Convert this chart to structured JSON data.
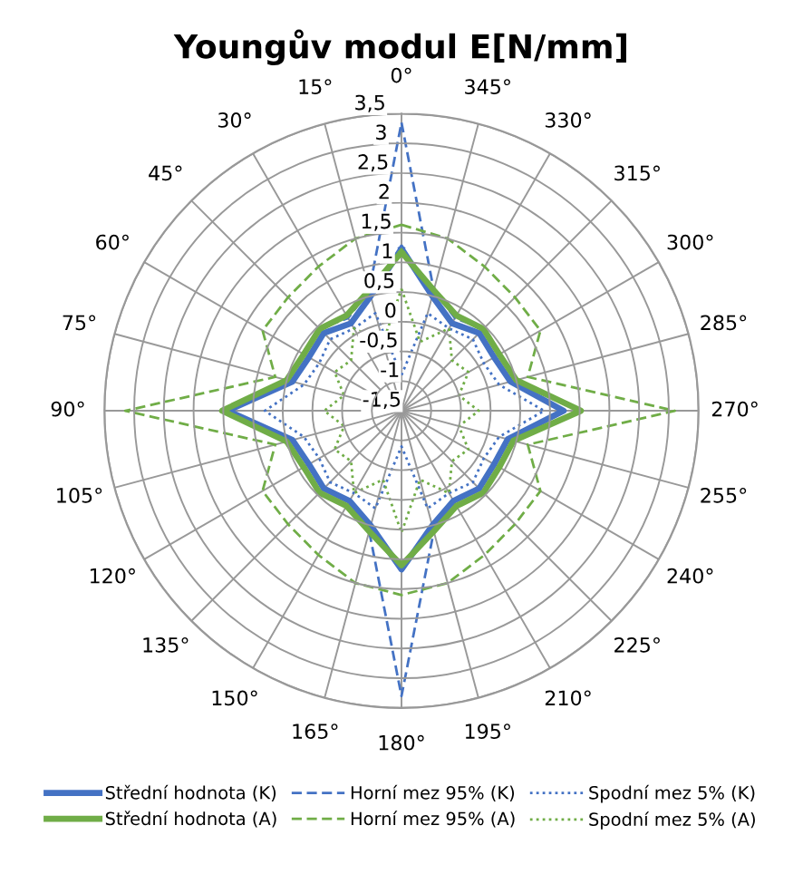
{
  "chart_data": {
    "type": "radar",
    "title": "Youngův modul E[N/mm]",
    "categories": [
      "0°",
      "345°",
      "330°",
      "315°",
      "300°",
      "285°",
      "270°",
      "255°",
      "240°",
      "225°",
      "210°",
      "195°",
      "180°",
      "165°",
      "150°",
      "135°",
      "120°",
      "105°",
      "90°",
      "75°",
      "60°",
      "45°",
      "30°",
      "15°"
    ],
    "ylim": [
      -1.5,
      3.5
    ],
    "yticks": [
      {
        "value": -1.5,
        "label": "-1,5"
      },
      -1,
      {
        "value": -0.5,
        "label": "-0,5"
      },
      0,
      {
        "value": 0.5,
        "label": "0,5"
      },
      1,
      {
        "value": 1.5,
        "label": "1,5"
      },
      2,
      {
        "value": 2.5,
        "label": "2,5"
      },
      3,
      {
        "value": 3.5,
        "label": "3,5"
      }
    ],
    "grid": true,
    "legend": "bottom",
    "marker": "none",
    "series": [
      {
        "name": "Střední hodnota (K)",
        "color": "#4472c4",
        "line_style": "solid",
        "values": [
          1.23,
          0.5,
          0.2,
          0.35,
          0.3,
          0.4,
          1.23,
          0.35,
          0.3,
          0.35,
          0.25,
          0.5,
          1.17,
          0.5,
          0.25,
          0.35,
          0.3,
          0.4,
          1.43,
          0.4,
          0.3,
          0.35,
          0.2,
          0.5
        ]
      },
      {
        "name": "Horní mez 95% (K)",
        "color": "#4472c4",
        "line_style": "dashed",
        "values": [
          3.35,
          0.6,
          0.3,
          0.45,
          0.4,
          0.5,
          1.52,
          0.45,
          0.4,
          0.45,
          0.35,
          0.6,
          3.3,
          0.6,
          0.35,
          0.45,
          0.4,
          0.5,
          1.5,
          0.5,
          0.4,
          0.45,
          0.3,
          0.6
        ]
      },
      {
        "name": "Spodní mez 5% (K)",
        "color": "#4472c4",
        "line_style": "dotted",
        "values": [
          -0.9,
          0.2,
          0.1,
          0.2,
          0.1,
          0.2,
          0.9,
          0.2,
          0.1,
          0.2,
          0.1,
          0.2,
          -0.9,
          0.2,
          0.1,
          0.2,
          0.1,
          0.2,
          0.8,
          0.2,
          0.1,
          0.2,
          0.1,
          0.2
        ]
      },
      {
        "name": "Střední hodnota (A)",
        "color": "#70ad47",
        "line_style": "solid",
        "values": [
          1.17,
          0.6,
          0.35,
          0.45,
          0.4,
          0.5,
          1.52,
          0.45,
          0.4,
          0.45,
          0.35,
          0.6,
          1.1,
          0.6,
          0.35,
          0.45,
          0.4,
          0.5,
          1.52,
          0.5,
          0.4,
          0.45,
          0.35,
          0.6
        ]
      },
      {
        "name": "Horní mez 95% (A)",
        "color": "#70ad47",
        "line_style": "dashed",
        "values": [
          1.63,
          1.5,
          1.3,
          1.2,
          1.2,
          0.7,
          3.1,
          0.7,
          1.2,
          1.2,
          1.3,
          1.5,
          1.6,
          1.5,
          1.3,
          1.2,
          1.2,
          0.7,
          3.15,
          0.7,
          1.2,
          1.2,
          1.3,
          1.5
        ]
      },
      {
        "name": "Spodní mez 5% (A)",
        "color": "#70ad47",
        "line_style": "dotted",
        "values": [
          0.55,
          -0.3,
          0.1,
          -0.3,
          -0.2,
          -0.5,
          -0.2,
          -0.5,
          -0.2,
          -0.3,
          0.1,
          -0.3,
          0.55,
          -0.3,
          0.1,
          -0.3,
          -0.2,
          -0.5,
          -0.2,
          -0.5,
          -0.2,
          -0.3,
          0.1,
          -0.3
        ]
      }
    ]
  }
}
